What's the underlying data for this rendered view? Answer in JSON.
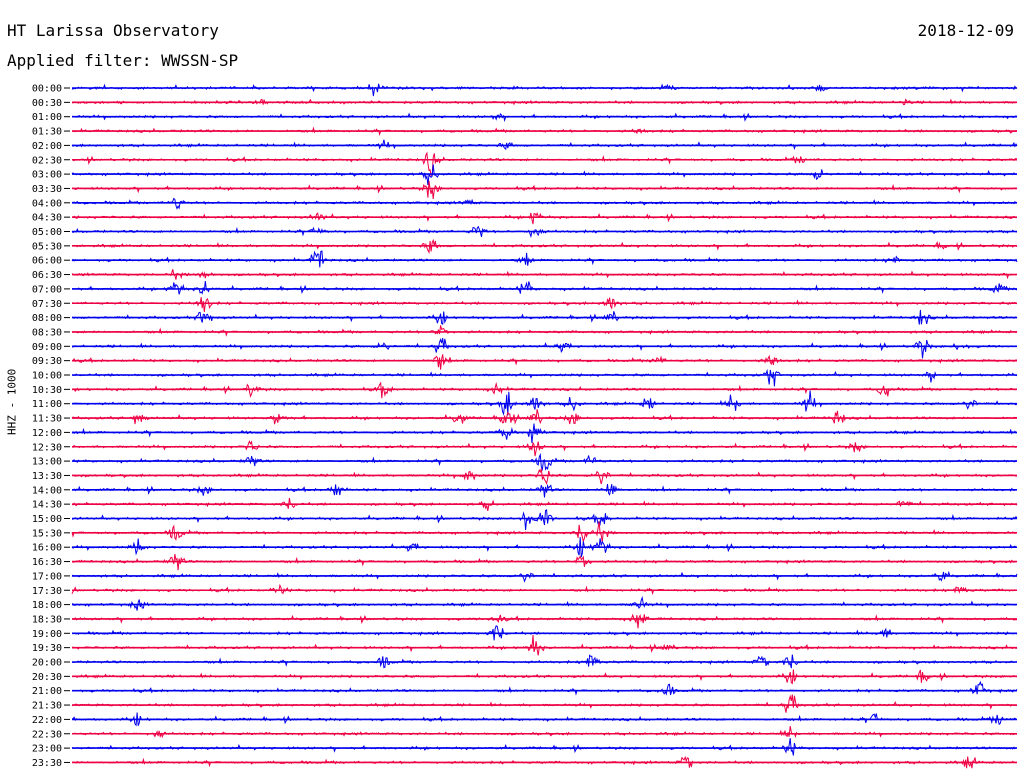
{
  "header": {
    "station": "HT Larissa Observatory",
    "date": "2018-12-09",
    "filter_text": "Applied filter: WWSSN-SP"
  },
  "chart_data": {
    "type": "line",
    "title": "HT Larissa Observatory",
    "subtitle": "Applied filter: WWSSN-SP",
    "date": "2018-12-09",
    "ylabel": "HHZ - 1000",
    "xlabel": "",
    "colors": [
      "#0000ee",
      "#ee0044"
    ],
    "grid": false,
    "legend": "none",
    "rows": [
      {
        "label": "00:00",
        "events": [
          [
            0.32,
            0.6
          ],
          [
            0.63,
            0.5
          ],
          [
            0.79,
            0.6
          ]
        ]
      },
      {
        "label": "00:30",
        "events": [
          [
            0.2,
            0.35
          ],
          [
            0.88,
            0.3
          ]
        ]
      },
      {
        "label": "01:00",
        "events": [
          [
            0.45,
            0.3
          ]
        ]
      },
      {
        "label": "01:30",
        "events": [
          [
            0.6,
            0.3
          ]
        ]
      },
      {
        "label": "02:00",
        "events": [
          [
            0.33,
            0.35
          ],
          [
            0.46,
            0.4
          ]
        ]
      },
      {
        "label": "02:30",
        "events": [
          [
            0.38,
            1.4
          ],
          [
            0.77,
            0.4
          ]
        ]
      },
      {
        "label": "03:00",
        "events": [
          [
            0.38,
            1.2
          ],
          [
            0.79,
            0.7
          ]
        ]
      },
      {
        "label": "03:30",
        "events": [
          [
            0.38,
            1.3
          ]
        ]
      },
      {
        "label": "04:00",
        "events": [
          [
            0.11,
            0.8
          ],
          [
            0.42,
            0.3
          ]
        ]
      },
      {
        "label": "04:30",
        "events": [
          [
            0.26,
            0.5
          ],
          [
            0.49,
            0.8
          ]
        ]
      },
      {
        "label": "05:00",
        "events": [
          [
            0.26,
            0.6
          ],
          [
            0.43,
            1.0
          ],
          [
            0.49,
            1.0
          ]
        ]
      },
      {
        "label": "05:30",
        "events": [
          [
            0.38,
            0.9
          ],
          [
            0.92,
            0.3
          ]
        ]
      },
      {
        "label": "06:00",
        "events": [
          [
            0.26,
            1.6
          ],
          [
            0.48,
            0.6
          ],
          [
            0.87,
            0.5
          ]
        ]
      },
      {
        "label": "06:30",
        "events": [
          [
            0.11,
            0.5
          ],
          [
            0.14,
            0.6
          ]
        ]
      },
      {
        "label": "07:00",
        "events": [
          [
            0.11,
            1.0
          ],
          [
            0.14,
            0.8
          ],
          [
            0.48,
            1.0
          ],
          [
            0.98,
            0.5
          ]
        ]
      },
      {
        "label": "07:30",
        "events": [
          [
            0.14,
            1.2
          ],
          [
            0.57,
            1.1
          ]
        ]
      },
      {
        "label": "08:00",
        "events": [
          [
            0.14,
            1.2
          ],
          [
            0.39,
            0.8
          ],
          [
            0.57,
            0.8
          ],
          [
            0.9,
            0.9
          ]
        ]
      },
      {
        "label": "08:30",
        "events": [
          [
            0.39,
            0.9
          ]
        ]
      },
      {
        "label": "09:00",
        "events": [
          [
            0.33,
            0.6
          ],
          [
            0.39,
            1.0
          ],
          [
            0.52,
            0.8
          ],
          [
            0.9,
            1.0
          ],
          [
            0.94,
            0.6
          ]
        ]
      },
      {
        "label": "09:30",
        "events": [
          [
            0.39,
            1.0
          ],
          [
            0.62,
            0.5
          ],
          [
            0.74,
            0.8
          ]
        ]
      },
      {
        "label": "10:00",
        "events": [
          [
            0.74,
            1.2
          ],
          [
            0.91,
            0.5
          ]
        ]
      },
      {
        "label": "10:30",
        "events": [
          [
            0.19,
            0.7
          ],
          [
            0.33,
            0.8
          ],
          [
            0.45,
            0.6
          ],
          [
            0.86,
            0.9
          ]
        ]
      },
      {
        "label": "11:00",
        "events": [
          [
            0.46,
            1.4
          ],
          [
            0.49,
            1.3
          ],
          [
            0.53,
            0.9
          ],
          [
            0.61,
            0.8
          ],
          [
            0.7,
            1.0
          ],
          [
            0.78,
            1.0
          ],
          [
            0.95,
            0.8
          ]
        ]
      },
      {
        "label": "11:30",
        "events": [
          [
            0.07,
            0.7
          ],
          [
            0.22,
            0.8
          ],
          [
            0.41,
            0.7
          ],
          [
            0.46,
            1.1
          ],
          [
            0.49,
            1.0
          ],
          [
            0.53,
            0.8
          ],
          [
            0.81,
            0.9
          ]
        ]
      },
      {
        "label": "12:00",
        "events": [
          [
            0.46,
            1.0
          ],
          [
            0.49,
            1.1
          ]
        ]
      },
      {
        "label": "12:30",
        "events": [
          [
            0.19,
            0.6
          ],
          [
            0.49,
            0.9
          ],
          [
            0.83,
            0.6
          ]
        ]
      },
      {
        "label": "13:00",
        "events": [
          [
            0.19,
            0.8
          ],
          [
            0.5,
            1.3
          ],
          [
            0.55,
            0.7
          ]
        ]
      },
      {
        "label": "13:30",
        "events": [
          [
            0.42,
            0.6
          ],
          [
            0.5,
            1.2
          ],
          [
            0.56,
            1.3
          ]
        ]
      },
      {
        "label": "14:00",
        "events": [
          [
            0.14,
            0.6
          ],
          [
            0.28,
            0.8
          ],
          [
            0.5,
            1.0
          ],
          [
            0.57,
            1.2
          ]
        ]
      },
      {
        "label": "14:30",
        "events": [
          [
            0.23,
            0.7
          ],
          [
            0.44,
            0.5
          ],
          [
            0.88,
            0.6
          ]
        ]
      },
      {
        "label": "15:00",
        "events": [
          [
            0.48,
            1.2
          ],
          [
            0.5,
            1.3
          ],
          [
            0.56,
            0.9
          ]
        ]
      },
      {
        "label": "15:30",
        "events": [
          [
            0.11,
            0.9
          ],
          [
            0.54,
            1.3
          ],
          [
            0.56,
            1.1
          ]
        ]
      },
      {
        "label": "16:00",
        "events": [
          [
            0.07,
            0.8
          ],
          [
            0.36,
            0.7
          ],
          [
            0.54,
            1.2
          ],
          [
            0.56,
            1.3
          ]
        ]
      },
      {
        "label": "16:30",
        "events": [
          [
            0.11,
            1.3
          ],
          [
            0.54,
            1.2
          ]
        ]
      },
      {
        "label": "17:00",
        "events": [
          [
            0.48,
            0.8
          ],
          [
            0.92,
            0.6
          ]
        ]
      },
      {
        "label": "17:30",
        "events": [
          [
            0.22,
            0.6
          ],
          [
            0.94,
            0.6
          ]
        ]
      },
      {
        "label": "18:00",
        "events": [
          [
            0.07,
            0.6
          ],
          [
            0.6,
            0.7
          ]
        ]
      },
      {
        "label": "18:30",
        "events": [
          [
            0.45,
            0.7
          ],
          [
            0.6,
            1.3
          ]
        ]
      },
      {
        "label": "19:00",
        "events": [
          [
            0.45,
            1.3
          ],
          [
            0.86,
            0.6
          ]
        ]
      },
      {
        "label": "19:30",
        "events": [
          [
            0.49,
            1.2
          ],
          [
            0.63,
            0.5
          ]
        ]
      },
      {
        "label": "20:00",
        "events": [
          [
            0.33,
            0.6
          ],
          [
            0.55,
            1.3
          ],
          [
            0.73,
            0.8
          ],
          [
            0.76,
            1.0
          ]
        ]
      },
      {
        "label": "20:30",
        "events": [
          [
            0.76,
            0.9
          ],
          [
            0.9,
            0.8
          ]
        ]
      },
      {
        "label": "21:00",
        "events": [
          [
            0.63,
            0.8
          ],
          [
            0.96,
            0.9
          ]
        ]
      },
      {
        "label": "21:30",
        "events": [
          [
            0.76,
            1.3
          ]
        ]
      },
      {
        "label": "22:00",
        "events": [
          [
            0.07,
            0.7
          ],
          [
            0.85,
            0.7
          ],
          [
            0.98,
            0.6
          ]
        ]
      },
      {
        "label": "22:30",
        "events": [
          [
            0.09,
            0.6
          ],
          [
            0.76,
            0.6
          ]
        ]
      },
      {
        "label": "23:00",
        "events": [
          [
            0.76,
            1.0
          ]
        ]
      },
      {
        "label": "23:30",
        "events": [
          [
            0.65,
            0.9
          ],
          [
            0.95,
            0.6
          ]
        ]
      }
    ]
  }
}
